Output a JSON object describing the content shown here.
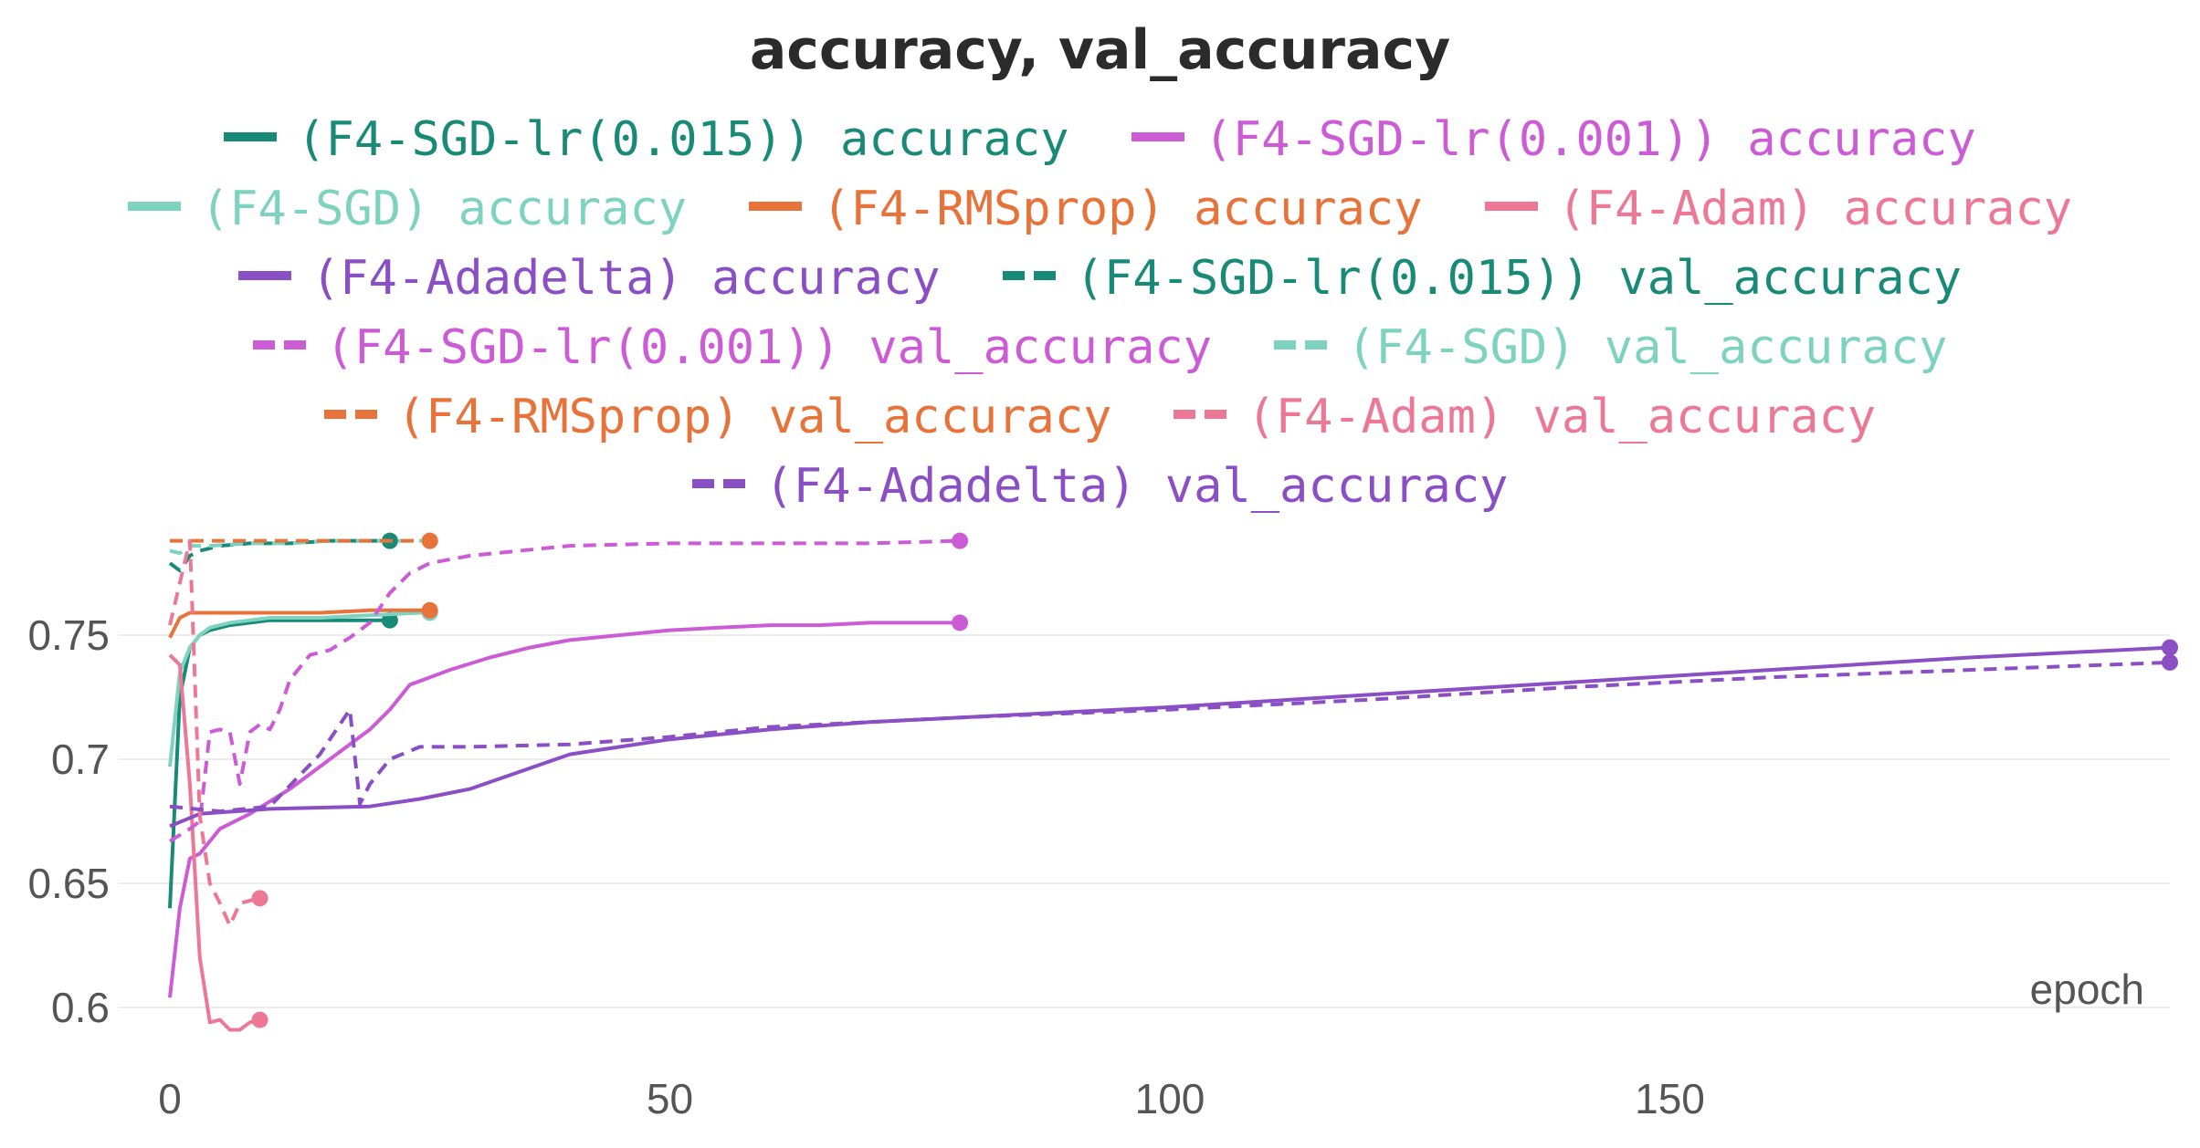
{
  "chart_data": {
    "type": "line",
    "title": "accuracy, val_accuracy",
    "xlabel": "epoch",
    "ylabel": "",
    "xlim": [
      0,
      200
    ],
    "ylim": [
      0.59,
      0.79
    ],
    "x_ticks": [
      "0",
      "50",
      "100",
      "150"
    ],
    "y_ticks": [
      "0.75",
      "0.7",
      "0.65",
      "0.6"
    ],
    "grid": "horizontal",
    "legend_placement": "top",
    "series": [
      {
        "name": "(F4-SGD-lr(0.015)) accuracy",
        "color": "#1a8a78",
        "dashed": false,
        "x": [
          0,
          1,
          2,
          3,
          4,
          6,
          8,
          10,
          15,
          20,
          22
        ],
        "y": [
          0.64,
          0.725,
          0.745,
          0.75,
          0.752,
          0.754,
          0.755,
          0.756,
          0.756,
          0.756,
          0.756
        ]
      },
      {
        "name": "(F4-SGD-lr(0.001)) accuracy",
        "color": "#cc5bd6",
        "dashed": false,
        "x": [
          0,
          1,
          2,
          3,
          5,
          8,
          12,
          16,
          20,
          22,
          24,
          28,
          32,
          36,
          40,
          45,
          50,
          55,
          60,
          65,
          70,
          75,
          79
        ],
        "y": [
          0.604,
          0.64,
          0.66,
          0.662,
          0.672,
          0.678,
          0.688,
          0.7,
          0.712,
          0.72,
          0.73,
          0.736,
          0.741,
          0.745,
          0.748,
          0.75,
          0.752,
          0.753,
          0.754,
          0.754,
          0.755,
          0.755,
          0.755
        ]
      },
      {
        "name": "(F4-SGD) accuracy",
        "color": "#7ed3c0",
        "dashed": false,
        "x": [
          0,
          1,
          2,
          3,
          4,
          6,
          8,
          10,
          15,
          20,
          25,
          26
        ],
        "y": [
          0.697,
          0.735,
          0.745,
          0.75,
          0.753,
          0.755,
          0.756,
          0.757,
          0.757,
          0.758,
          0.759,
          0.759
        ]
      },
      {
        "name": "(F4-RMSprop) accuracy",
        "color": "#e8733a",
        "dashed": false,
        "x": [
          0,
          1,
          2,
          5,
          10,
          15,
          20,
          26
        ],
        "y": [
          0.749,
          0.757,
          0.759,
          0.759,
          0.759,
          0.759,
          0.76,
          0.76
        ]
      },
      {
        "name": "(F4-Adam) accuracy",
        "color": "#ec7895",
        "dashed": false,
        "x": [
          0,
          1,
          2,
          3,
          4,
          5,
          6,
          7,
          8,
          9
        ],
        "y": [
          0.742,
          0.738,
          0.69,
          0.62,
          0.594,
          0.595,
          0.591,
          0.591,
          0.594,
          0.595
        ]
      },
      {
        "name": "(F4-Adadelta) accuracy",
        "color": "#8a4fc4",
        "dashed": false,
        "x": [
          0,
          3,
          10,
          20,
          25,
          30,
          35,
          40,
          50,
          60,
          70,
          80,
          90,
          100,
          120,
          140,
          160,
          180,
          200
        ],
        "y": [
          0.673,
          0.678,
          0.68,
          0.681,
          0.684,
          0.688,
          0.695,
          0.702,
          0.708,
          0.712,
          0.715,
          0.717,
          0.719,
          0.721,
          0.726,
          0.731,
          0.736,
          0.741,
          0.745
        ]
      },
      {
        "name": "(F4-SGD-lr(0.015)) val_accuracy",
        "color": "#1a8a78",
        "dashed": true,
        "x": [
          0,
          1,
          2,
          3,
          5,
          8,
          12,
          16,
          20,
          22
        ],
        "y": [
          0.779,
          0.776,
          0.782,
          0.784,
          0.786,
          0.787,
          0.787,
          0.788,
          0.788,
          0.788
        ]
      },
      {
        "name": "(F4-SGD-lr(0.001)) val_accuracy",
        "color": "#cc5bd6",
        "dashed": true,
        "x": [
          0,
          2,
          3,
          4,
          5,
          6,
          7,
          8,
          9,
          10,
          11,
          12,
          14,
          16,
          18,
          20,
          22,
          24,
          26,
          30,
          35,
          40,
          50,
          60,
          70,
          79
        ],
        "y": [
          0.667,
          0.672,
          0.675,
          0.711,
          0.712,
          0.711,
          0.69,
          0.711,
          0.714,
          0.712,
          0.72,
          0.732,
          0.742,
          0.744,
          0.749,
          0.755,
          0.767,
          0.775,
          0.779,
          0.782,
          0.784,
          0.786,
          0.787,
          0.787,
          0.787,
          0.788
        ]
      },
      {
        "name": "(F4-SGD) val_accuracy",
        "color": "#7ed3c0",
        "dashed": true,
        "x": [
          0,
          1,
          2,
          4,
          8,
          12,
          16,
          20,
          24,
          26
        ],
        "y": [
          0.784,
          0.783,
          0.786,
          0.786,
          0.787,
          0.787,
          0.788,
          0.788,
          0.788,
          0.788
        ]
      },
      {
        "name": "(F4-RMSprop) val_accuracy",
        "color": "#e8733a",
        "dashed": true,
        "x": [
          0,
          5,
          10,
          15,
          20,
          26
        ],
        "y": [
          0.788,
          0.788,
          0.788,
          0.788,
          0.788,
          0.788
        ]
      },
      {
        "name": "(F4-Adam) val_accuracy",
        "color": "#ec7895",
        "dashed": true,
        "x": [
          0,
          1,
          2,
          3,
          4,
          5,
          6,
          7,
          8,
          9
        ],
        "y": [
          0.754,
          0.771,
          0.788,
          0.677,
          0.65,
          0.642,
          0.633,
          0.642,
          0.643,
          0.644
        ]
      },
      {
        "name": "(F4-Adadelta) val_accuracy",
        "color": "#8a4fc4",
        "dashed": true,
        "x": [
          0,
          5,
          10,
          15,
          18,
          19,
          20,
          22,
          25,
          30,
          40,
          50,
          60,
          70,
          80,
          100,
          120,
          140,
          160,
          180,
          200
        ],
        "y": [
          0.681,
          0.679,
          0.681,
          0.702,
          0.72,
          0.682,
          0.69,
          0.7,
          0.705,
          0.705,
          0.706,
          0.709,
          0.713,
          0.715,
          0.717,
          0.72,
          0.724,
          0.729,
          0.733,
          0.736,
          0.739
        ]
      }
    ]
  }
}
